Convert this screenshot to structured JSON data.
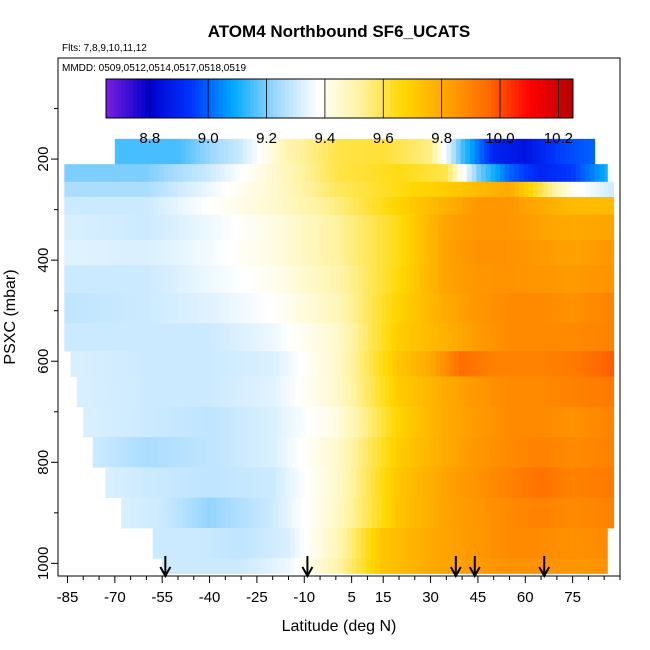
{
  "chart_data": {
    "type": "heatmap",
    "title": "ATOM4 Northbound SF6_UCATS",
    "flights_label": "Flts: 7,8,9,10,11,12",
    "dates_label": "MMDD: 0509,0512,0514,0517,0518,0519",
    "xlabel": "Latitude (deg N)",
    "ylabel": "PSXC (mbar)",
    "xlim": [
      -88,
      90
    ],
    "ylim": [
      1025,
      0
    ],
    "x_ticks": [
      -85,
      -70,
      -55,
      -40,
      -25,
      -10,
      5,
      15,
      30,
      45,
      60,
      75
    ],
    "x_tick_labels": [
      "-85",
      "-70",
      "-55",
      "-40",
      "-25",
      "-10",
      "5",
      "15",
      "30",
      "45",
      "60",
      "75"
    ],
    "y_ticks": [
      200,
      400,
      600,
      800,
      1000
    ],
    "y_tick_labels": [
      "200",
      "400",
      "600",
      "800",
      "1000"
    ],
    "colorbar": {
      "range": [
        8.65,
        10.25
      ],
      "ticks": [
        8.8,
        9.0,
        9.2,
        9.4,
        9.6,
        9.8,
        10.0,
        10.2
      ],
      "tick_labels": [
        "8.8",
        "9.0",
        "9.2",
        "9.4",
        "9.6",
        "9.8",
        "10.0",
        "10.2"
      ],
      "colors": [
        "#7b1fe0",
        "#0000cc",
        "#0033ff",
        "#00aaff",
        "#9fd8ff",
        "#ffffff",
        "#fff3a0",
        "#ffd700",
        "#ffa500",
        "#ff6a00",
        "#ff0000",
        "#b40000"
      ]
    },
    "arrows_latitude": [
      -54,
      -9,
      38,
      44,
      66
    ],
    "sf6_rows": [
      {
        "p_top": 160,
        "p_bot": 210,
        "lat_min": -70,
        "lat_max": 82,
        "lat": [
          -70,
          -50,
          -30,
          -15,
          0,
          15,
          30,
          40,
          50,
          60,
          70,
          82
        ],
        "sf6": [
          9.15,
          9.15,
          9.3,
          9.5,
          9.6,
          9.62,
          9.55,
          9.15,
          8.9,
          8.85,
          8.95,
          9.0
        ]
      },
      {
        "p_top": 210,
        "p_bot": 245,
        "lat_min": -86,
        "lat_max": 86,
        "lat": [
          -86,
          -60,
          -40,
          -20,
          0,
          20,
          35,
          45,
          55,
          65,
          75,
          86
        ],
        "sf6": [
          9.2,
          9.2,
          9.3,
          9.45,
          9.6,
          9.65,
          9.6,
          9.2,
          9.0,
          8.9,
          8.95,
          9.1
        ]
      },
      {
        "p_top": 245,
        "p_bot": 275,
        "lat_min": -86,
        "lat_max": 88,
        "lat": [
          -86,
          -60,
          -40,
          -20,
          0,
          20,
          35,
          45,
          55,
          65,
          75,
          88
        ],
        "sf6": [
          9.25,
          9.25,
          9.35,
          9.45,
          9.58,
          9.65,
          9.7,
          9.75,
          9.8,
          9.6,
          9.4,
          9.3
        ]
      },
      {
        "p_top": 275,
        "p_bot": 310,
        "lat_min": -86,
        "lat_max": 88,
        "lat": [
          -86,
          -60,
          -40,
          -20,
          0,
          20,
          35,
          45,
          55,
          65,
          75,
          88
        ],
        "sf6": [
          9.3,
          9.3,
          9.38,
          9.45,
          9.55,
          9.68,
          9.78,
          9.85,
          9.85,
          9.8,
          9.75,
          9.75
        ]
      },
      {
        "p_top": 310,
        "p_bot": 360,
        "lat_min": -86,
        "lat_max": 88,
        "lat": [
          -86,
          -60,
          -40,
          -20,
          0,
          20,
          35,
          45,
          55,
          65,
          75,
          88
        ],
        "sf6": [
          9.32,
          9.3,
          9.35,
          9.42,
          9.52,
          9.65,
          9.82,
          9.85,
          9.85,
          9.82,
          9.8,
          9.82
        ]
      },
      {
        "p_top": 360,
        "p_bot": 410,
        "lat_min": -86,
        "lat_max": 88,
        "lat": [
          -86,
          -60,
          -40,
          -20,
          0,
          20,
          35,
          45,
          55,
          65,
          75,
          88
        ],
        "sf6": [
          9.33,
          9.32,
          9.36,
          9.42,
          9.52,
          9.65,
          9.82,
          9.86,
          9.86,
          9.84,
          9.82,
          9.85
        ]
      },
      {
        "p_top": 410,
        "p_bot": 465,
        "lat_min": -86,
        "lat_max": 88,
        "lat": [
          -86,
          -60,
          -40,
          -20,
          0,
          20,
          35,
          45,
          55,
          65,
          75,
          88
        ],
        "sf6": [
          9.3,
          9.3,
          9.35,
          9.4,
          9.5,
          9.66,
          9.82,
          9.85,
          9.86,
          9.85,
          9.84,
          9.86
        ]
      },
      {
        "p_top": 465,
        "p_bot": 525,
        "lat_min": -86,
        "lat_max": 88,
        "lat": [
          -86,
          -60,
          -40,
          -20,
          0,
          20,
          35,
          45,
          55,
          65,
          75,
          88
        ],
        "sf6": [
          9.28,
          9.3,
          9.33,
          9.38,
          9.48,
          9.68,
          9.8,
          9.85,
          9.88,
          9.88,
          9.86,
          9.9
        ]
      },
      {
        "p_top": 525,
        "p_bot": 580,
        "lat_min": -86,
        "lat_max": 88,
        "lat": [
          -86,
          -60,
          -40,
          -20,
          0,
          20,
          35,
          45,
          55,
          65,
          75,
          88
        ],
        "sf6": [
          9.3,
          9.3,
          9.3,
          9.35,
          9.45,
          9.7,
          9.78,
          9.84,
          9.88,
          9.88,
          9.88,
          9.9
        ]
      },
      {
        "p_top": 580,
        "p_bot": 630,
        "lat_min": -84,
        "lat_max": 88,
        "lat": [
          -84,
          -60,
          -40,
          -20,
          0,
          20,
          30,
          40,
          50,
          65,
          75,
          88
        ],
        "sf6": [
          9.32,
          9.3,
          9.3,
          9.32,
          9.45,
          9.72,
          9.8,
          9.95,
          9.9,
          9.9,
          9.92,
          9.98
        ]
      },
      {
        "p_top": 630,
        "p_bot": 690,
        "lat_min": -82,
        "lat_max": 88,
        "lat": [
          -82,
          -60,
          -40,
          -20,
          0,
          20,
          35,
          45,
          55,
          65,
          75,
          88
        ],
        "sf6": [
          9.32,
          9.3,
          9.3,
          9.33,
          9.45,
          9.7,
          9.8,
          9.85,
          9.88,
          9.88,
          9.9,
          9.92
        ]
      },
      {
        "p_top": 690,
        "p_bot": 750,
        "lat_min": -80,
        "lat_max": 88,
        "lat": [
          -80,
          -60,
          -40,
          -20,
          0,
          20,
          35,
          45,
          55,
          65,
          75,
          88
        ],
        "sf6": [
          9.32,
          9.3,
          9.28,
          9.32,
          9.42,
          9.68,
          9.8,
          9.84,
          9.88,
          9.88,
          9.86,
          9.9
        ]
      },
      {
        "p_top": 750,
        "p_bot": 810,
        "lat_min": -77,
        "lat_max": 88,
        "lat": [
          -77,
          -60,
          -40,
          -20,
          0,
          20,
          35,
          45,
          55,
          65,
          75,
          88
        ],
        "sf6": [
          9.3,
          9.25,
          9.28,
          9.32,
          9.45,
          9.7,
          9.8,
          9.85,
          9.88,
          9.9,
          9.88,
          9.9
        ]
      },
      {
        "p_top": 810,
        "p_bot": 870,
        "lat_min": -73,
        "lat_max": 88,
        "lat": [
          -73,
          -60,
          -40,
          -20,
          0,
          20,
          35,
          45,
          55,
          65,
          75,
          88
        ],
        "sf6": [
          9.32,
          9.3,
          9.28,
          9.3,
          9.45,
          9.72,
          9.82,
          9.86,
          9.9,
          9.94,
          9.9,
          9.92
        ]
      },
      {
        "p_top": 870,
        "p_bot": 930,
        "lat_min": -68,
        "lat_max": 88,
        "lat": [
          -68,
          -55,
          -40,
          -20,
          0,
          20,
          35,
          45,
          55,
          65,
          75,
          88
        ],
        "sf6": [
          9.32,
          9.3,
          9.22,
          9.3,
          9.46,
          9.72,
          9.82,
          9.85,
          9.88,
          9.9,
          9.88,
          9.9
        ]
      },
      {
        "p_top": 930,
        "p_bot": 990,
        "lat_min": -58,
        "lat_max": 86,
        "lat": [
          -58,
          -45,
          -30,
          -15,
          0,
          15,
          30,
          45,
          55,
          65,
          75,
          86
        ],
        "sf6": [
          9.3,
          9.3,
          9.28,
          9.32,
          9.48,
          9.72,
          9.8,
          9.85,
          9.88,
          9.88,
          9.86,
          9.88
        ]
      },
      {
        "p_top": 990,
        "p_bot": 1020,
        "lat_min": -55,
        "lat_max": 86,
        "lat": [
          -55,
          -45,
          -30,
          -15,
          0,
          15,
          30,
          45,
          55,
          65,
          75,
          86
        ],
        "sf6": [
          9.3,
          9.3,
          9.3,
          9.35,
          9.5,
          9.72,
          9.8,
          9.84,
          9.86,
          9.86,
          9.85,
          9.86
        ]
      }
    ]
  }
}
